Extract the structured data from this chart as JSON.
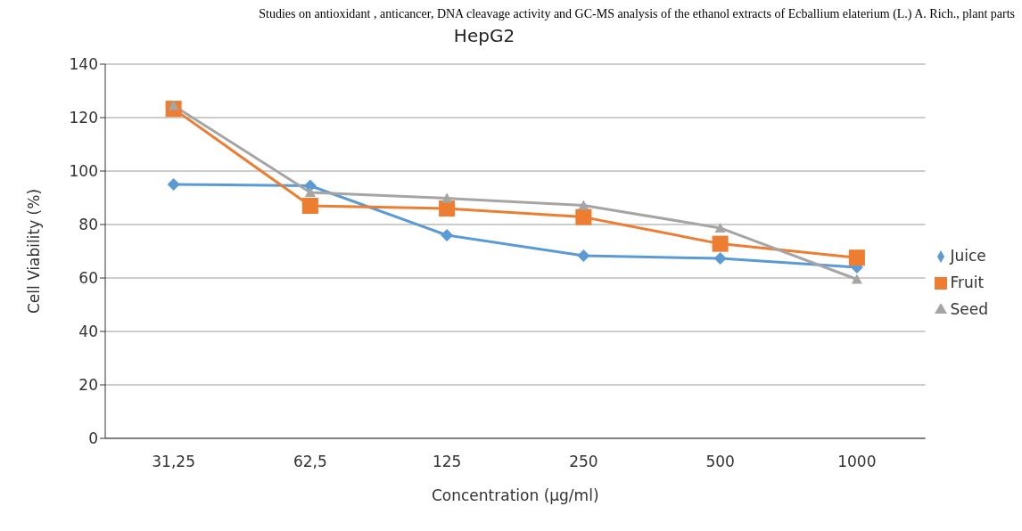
{
  "chart_data": {
    "type": "line",
    "title": "HepG2",
    "xlabel": "Concentration (µg/ml)",
    "ylabel": "Cell Viability (%)",
    "annotations": [
      "Studies on antioxidant , anticancer, DNA cleavage activity and GC-MS analysis of the ethanol extracts of Ecballium elaterium (L.) A. Rich., plant parts"
    ],
    "categories": [
      "31,25",
      "62,5",
      "125",
      "250",
      "500",
      "1000"
    ],
    "series": [
      {
        "name": "Juice",
        "color": "#5b9bd5",
        "marker": "diamond",
        "values": [
          95,
          94.5,
          76,
          68.3,
          67.3,
          64
        ]
      },
      {
        "name": "Fruit",
        "color": "#ed7d31",
        "marker": "square",
        "values": [
          123.3,
          87,
          86,
          82.8,
          72.8,
          67.6
        ]
      },
      {
        "name": "Seed",
        "color": "#a5a5a5",
        "marker": "triangle",
        "values": [
          124.5,
          92,
          89.8,
          87.2,
          78.7,
          59.5
        ]
      }
    ],
    "ylim": [
      0,
      140
    ],
    "yticks": [
      0,
      20,
      40,
      60,
      80,
      100,
      120,
      140
    ],
    "grid": "y",
    "legend": "right",
    "line_style": "solid"
  }
}
